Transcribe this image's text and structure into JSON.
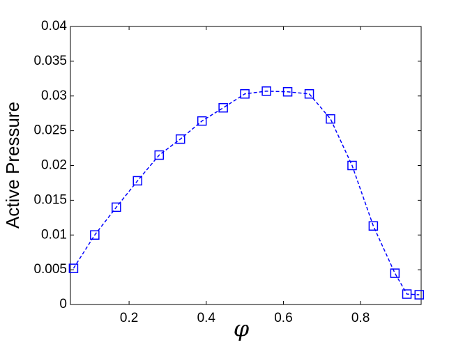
{
  "chart_data": {
    "type": "line",
    "x_label": "φ",
    "y_label": "Active Pressure",
    "x": [
      0.056,
      0.111,
      0.167,
      0.222,
      0.278,
      0.333,
      0.389,
      0.444,
      0.5,
      0.556,
      0.611,
      0.667,
      0.722,
      0.778,
      0.833,
      0.889,
      0.92,
      0.952
    ],
    "series": [
      {
        "color": "#0000ff",
        "values": [
          0.0052,
          0.01,
          0.014,
          0.0178,
          0.0215,
          0.0238,
          0.0264,
          0.0283,
          0.0303,
          0.0307,
          0.0306,
          0.0303,
          0.0267,
          0.02,
          0.0113,
          0.0045,
          0.0015,
          0.0014
        ]
      }
    ],
    "xlim": [
      0.048,
      0.957
    ],
    "xticks": [
      0.2,
      0.4,
      0.6,
      0.8
    ],
    "ylim": [
      0,
      0.04
    ],
    "yticks": [
      0,
      0.005,
      0.01,
      0.015,
      0.02,
      0.025,
      0.03,
      0.035,
      0.04
    ]
  }
}
